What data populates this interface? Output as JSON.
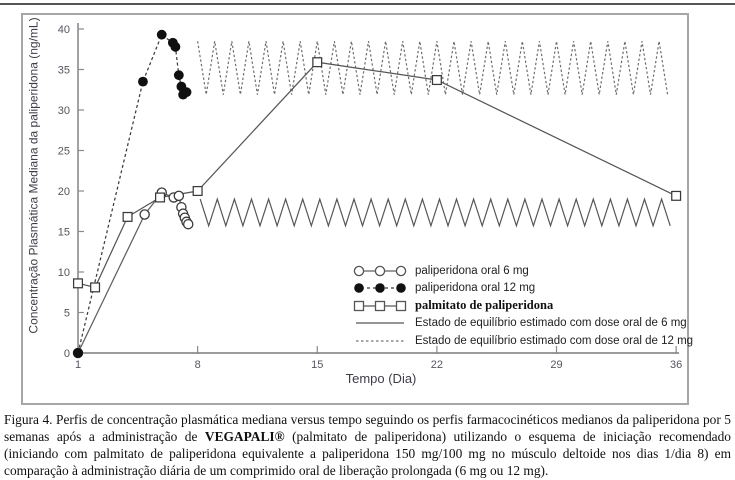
{
  "figure": {
    "border_color": "#a6a6a6"
  },
  "chart_data": {
    "type": "line",
    "title": "",
    "xlabel": "Tempo (Dia)",
    "ylabel": "Concentração Plasmática Mediana da paliperidona (ng/mL)",
    "xlim": [
      1,
      36
    ],
    "ylim": [
      0,
      40
    ],
    "x_ticks": [
      1,
      8,
      15,
      22,
      29,
      36
    ],
    "y_ticks": [
      0,
      5,
      10,
      15,
      20,
      25,
      30,
      35,
      40
    ],
    "grid": "off",
    "legend_position": "inside-lower-right",
    "series": [
      {
        "name": "paliperidona oral 6 mg",
        "marker": "circle-open",
        "line": "solid",
        "color": "#5f5f5f",
        "points": [
          [
            1,
            0
          ],
          [
            4.9,
            17.1
          ],
          [
            5.9,
            19.8
          ],
          [
            6.6,
            19.2
          ],
          [
            6.9,
            19.4
          ],
          [
            7.05,
            18.0
          ],
          [
            7.15,
            17.2
          ],
          [
            7.25,
            16.7
          ],
          [
            7.35,
            16.2
          ],
          [
            7.45,
            15.9
          ]
        ]
      },
      {
        "name": "paliperidona oral 12 mg",
        "marker": "circle-filled",
        "line": "dashed",
        "color": "#3c3c3c",
        "points": [
          [
            1,
            0
          ],
          [
            4.8,
            33.5
          ],
          [
            5.9,
            39.3
          ],
          [
            6.55,
            38.3
          ],
          [
            6.7,
            37.8
          ],
          [
            6.9,
            34.3
          ],
          [
            7.05,
            32.9
          ],
          [
            7.15,
            31.9
          ],
          [
            7.35,
            32.2
          ]
        ]
      },
      {
        "name": "palmitato de paliperidona",
        "marker": "square-open",
        "line": "solid",
        "color": "#565656",
        "points": [
          [
            1,
            8.6
          ],
          [
            2,
            8.1
          ],
          [
            3.9,
            16.8
          ],
          [
            5.8,
            19.2
          ],
          [
            8,
            20.0
          ],
          [
            15,
            35.9
          ],
          [
            22,
            33.7
          ],
          [
            36,
            19.4
          ]
        ]
      }
    ],
    "steady_state": [
      {
        "name": "Estado de equilíbrio estimado com dose oral de 6 mg",
        "line": "solid",
        "color": "#565656",
        "from_day": 8.15,
        "to_day": 35.65,
        "trough": 15.7,
        "peak": 19.0,
        "period_days": 1
      },
      {
        "name": "Estado de equilíbrio estimado com dose oral de 12 mg",
        "line": "dashed",
        "color": "#6e6e6e",
        "from_day": 8.0,
        "to_day": 35.65,
        "trough": 31.9,
        "peak": 38.5,
        "period_days": 1
      }
    ],
    "legend": [
      {
        "label": "paliperidona oral 6 mg",
        "symbol": "circles-open-line",
        "bold": false
      },
      {
        "label": "paliperidona oral 12 mg",
        "symbol": "circles-filled-dashed",
        "bold": false
      },
      {
        "label": "palmitato de paliperidona",
        "symbol": "squares-open-line",
        "bold": true
      },
      {
        "label": "Estado de equilíbrio estimado com dose oral de 6 mg",
        "symbol": "solid-line",
        "bold": false
      },
      {
        "label": "Estado de equilíbrio estimado com dose oral de 12 mg",
        "symbol": "dashed-line",
        "bold": false
      }
    ]
  },
  "caption": {
    "prefix": "Figura 4. Perfis de concentração plasmática mediana versus tempo seguindo os perfis farmacocinéticos medianos da paliperidona por 5 semanas após a administração de ",
    "brand": "VEGAPALI®",
    "suffix": " (palmitato de paliperidona) utilizando o esquema de iniciação recomendado (iniciando com palmitato de paliperidona equivalente a paliperidona 150 mg/100 mg no músculo deltoide nos dias 1/dia 8) em comparação à administração diária de um comprimido oral de liberação prolongada (6 mg ou 12 mg)."
  }
}
